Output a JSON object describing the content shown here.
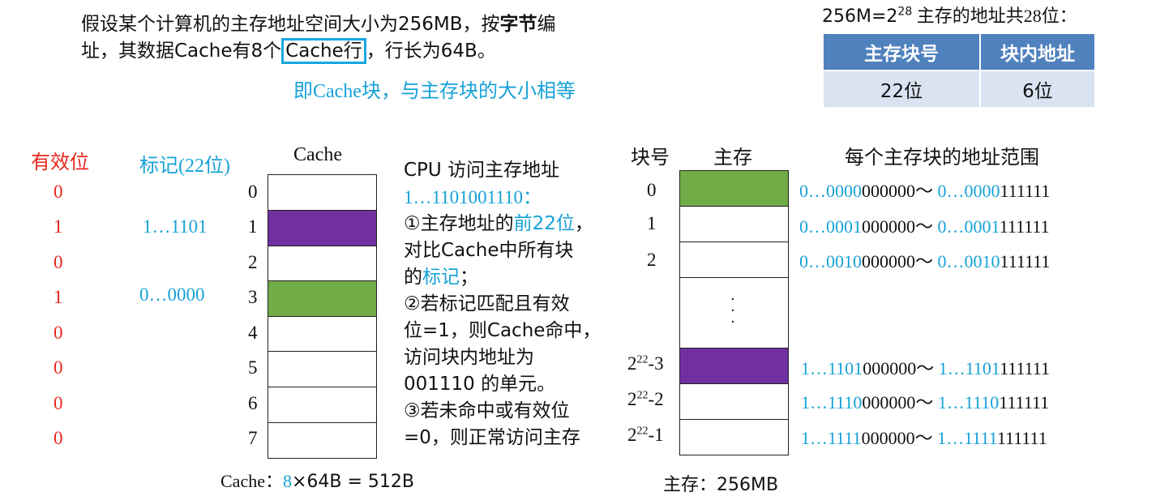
{
  "intro": {
    "line1_a": "假设某个计算机的主存地址空间大小为256MB，按",
    "line1_b": "字节",
    "line1_c": "编",
    "line2_a": "址，其数据Cache有8个",
    "line2_boxed": "Cache行",
    "line2_c": "，行长为64B。",
    "note": "即Cache块，与主存块的大小相等"
  },
  "address_bits": {
    "title_a": "256M=2",
    "title_sup": "28",
    "title_b": " 主存的地址共28位：",
    "headers": [
      "主存块号",
      "块内地址"
    ],
    "values": [
      "22位",
      "6位"
    ]
  },
  "cache": {
    "valid_header": "有效位",
    "tag_header": "标记(22位)",
    "title": "Cache",
    "valid_bits": [
      "0",
      "1",
      "0",
      "1",
      "0",
      "0",
      "0",
      "0"
    ],
    "tags": [
      "",
      "1…1101",
      "",
      "0…0000",
      "",
      "",
      "",
      ""
    ],
    "row_numbers": [
      "0",
      "1",
      "2",
      "3",
      "4",
      "5",
      "6",
      "7"
    ],
    "size_label": "Cache：",
    "size_count": "8",
    "size_rest": "×64B = 512B"
  },
  "cpu_text": {
    "l1": "CPU 访问主存地址",
    "l2": "1…1101001110：",
    "l3a": "①主存地址的",
    "l3b": "前22位",
    "l3c": "，",
    "l4": "对比Cache中所有块",
    "l5a": "的",
    "l5b": "标记",
    "l5c": "；",
    "l6": "②若标记匹配且有效",
    "l7": "位=1，则Cache命中，",
    "l8": "访问块内地址为",
    "l9": "001110 的单元。",
    "l10": "③若未命中或有效位",
    "l11": "=0，则正常访问主存"
  },
  "memory": {
    "block_header": "块号",
    "title": "主存",
    "range_header": "每个主存块的地址范围",
    "block_numbers_top": [
      "0",
      "1",
      "2"
    ],
    "block_numbers_bottom": [
      {
        "base": "2",
        "sup": "22",
        "suffix": "-3"
      },
      {
        "base": "2",
        "sup": "22",
        "suffix": "-2"
      },
      {
        "base": "2",
        "sup": "22",
        "suffix": "-1"
      }
    ],
    "ellipsis": "·\n·\n·",
    "ranges": [
      {
        "b1": "0…0000",
        "o1": "000000～ ",
        "b2": "0…0000",
        "o2": "111111"
      },
      {
        "b1": "0…0001",
        "o1": "000000～ ",
        "b2": "0…0001",
        "o2": "111111"
      },
      {
        "b1": "0…0010",
        "o1": "000000～ ",
        "b2": "0…0010",
        "o2": "111111"
      },
      {
        "b1": "1…1101",
        "o1": "000000～ ",
        "b2": "1…1101",
        "o2": "111111"
      },
      {
        "b1": "1…1110",
        "o1": "000000～ ",
        "b2": "1…1110",
        "o2": "111111"
      },
      {
        "b1": "1…1111",
        "o1": "000000～ ",
        "b2": "1…1111",
        "o2": "111111"
      }
    ],
    "size_label": "主存：256MB"
  },
  "colors": {
    "accent_blue": "#17a2d8",
    "red": "#e8261e",
    "purple": "#7030a0",
    "green": "#70ad47",
    "table_header": "#4f81bd",
    "table_cell": "#dae3f1"
  }
}
